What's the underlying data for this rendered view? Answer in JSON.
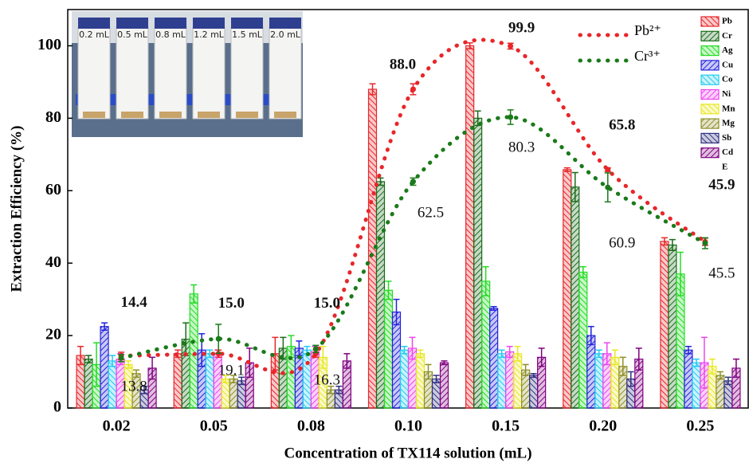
{
  "chart_data": {
    "type": "bar",
    "xlabel": "Concentration of TX114 solution (mL)",
    "ylabel": "Extraction Efficiency (%)",
    "categories": [
      "0.02",
      "0.05",
      "0.08",
      "0.10",
      "0.15",
      "0.20",
      "0.25"
    ],
    "ylim": [
      0,
      110
    ],
    "yticks": [
      0,
      20,
      40,
      60,
      80,
      100
    ],
    "series": [
      {
        "name": "Pb",
        "color": "#e8262a",
        "values": [
          14.5,
          15,
          15,
          88,
          100,
          65.8,
          46
        ],
        "errors": [
          2.5,
          1,
          4.5,
          1.5,
          0.8,
          0.5,
          1
        ]
      },
      {
        "name": "Cr",
        "color": "#1a6b1a",
        "values": [
          13.5,
          19,
          16.5,
          62.5,
          80,
          61,
          45
        ],
        "errors": [
          1,
          4.5,
          3,
          1,
          2,
          4,
          1.5
        ]
      },
      {
        "name": "Ag",
        "color": "#22dd22",
        "values": [
          12,
          31.5,
          17,
          32.5,
          35,
          37.5,
          37
        ],
        "errors": [
          6,
          2.5,
          3,
          2.5,
          4,
          1.5,
          6
        ]
      },
      {
        "name": "Cu",
        "color": "#2222dd",
        "values": [
          22.5,
          16,
          16.5,
          26.5,
          27.5,
          20,
          16
        ],
        "errors": [
          1,
          4.5,
          2,
          3.5,
          0.5,
          2.5,
          1
        ]
      },
      {
        "name": "Co",
        "color": "#22ccee",
        "values": [
          13,
          15,
          16,
          16,
          15,
          15,
          12.5
        ],
        "errors": [
          1.5,
          1,
          1,
          1,
          1,
          1,
          1
        ]
      },
      {
        "name": "Ni",
        "color": "#ee44ee",
        "values": [
          13.5,
          15,
          15.5,
          16.5,
          15.5,
          15,
          12.5
        ],
        "errors": [
          1.5,
          1,
          1.5,
          3,
          1.5,
          3,
          7
        ]
      },
      {
        "name": "Mn",
        "color": "#e8e822",
        "values": [
          12,
          8,
          14,
          15,
          15,
          14,
          11.5
        ],
        "errors": [
          1,
          1,
          3,
          1,
          2,
          2,
          2
        ]
      },
      {
        "name": "Mg",
        "color": "#8f8f2a",
        "values": [
          9.5,
          8,
          5,
          10,
          10.5,
          11.5,
          9
        ],
        "errors": [
          1,
          1,
          1,
          2,
          1.5,
          2.5,
          1
        ]
      },
      {
        "name": "Sb",
        "color": "#303080",
        "values": [
          5,
          7.5,
          5,
          8,
          9,
          8,
          7.5
        ],
        "errors": [
          1,
          1,
          1,
          1,
          0.5,
          2,
          1
        ]
      },
      {
        "name": "Cd",
        "color": "#800080",
        "values": [
          11,
          12.5,
          13,
          12.5,
          14,
          13.5,
          11
        ],
        "errors": [
          3,
          4,
          2,
          0.5,
          2.5,
          3,
          2.5
        ]
      }
    ],
    "legend_note": "E",
    "lines": [
      {
        "name": "Pb²⁺",
        "color": "#e8262a",
        "values": [
          14.4,
          15.0,
          15.0,
          88.0,
          99.9,
          65.8,
          45.9
        ],
        "errors": [
          1,
          1,
          1,
          1.5,
          0.8,
          0.5,
          1
        ],
        "value_labels": [
          "14.4",
          "15.0",
          "15.0",
          "88.0",
          "99.9",
          "65.8",
          "45.9"
        ]
      },
      {
        "name": "Cr³⁺",
        "color": "#1a7a1a",
        "values": [
          13.8,
          19.1,
          16.3,
          62.5,
          80.3,
          60.9,
          45.5
        ],
        "errors": [
          1,
          4,
          1,
          1,
          2,
          4,
          1.5
        ],
        "value_labels": [
          "13.8",
          "19.1",
          "16.3",
          "62.5",
          "80.3",
          "60.9",
          "45.5"
        ]
      }
    ],
    "inset_labels": [
      "0.2 mL",
      "0.5 mL",
      "0.8 mL",
      "1.2 mL",
      "1.5 mL",
      "2.0 mL"
    ]
  }
}
